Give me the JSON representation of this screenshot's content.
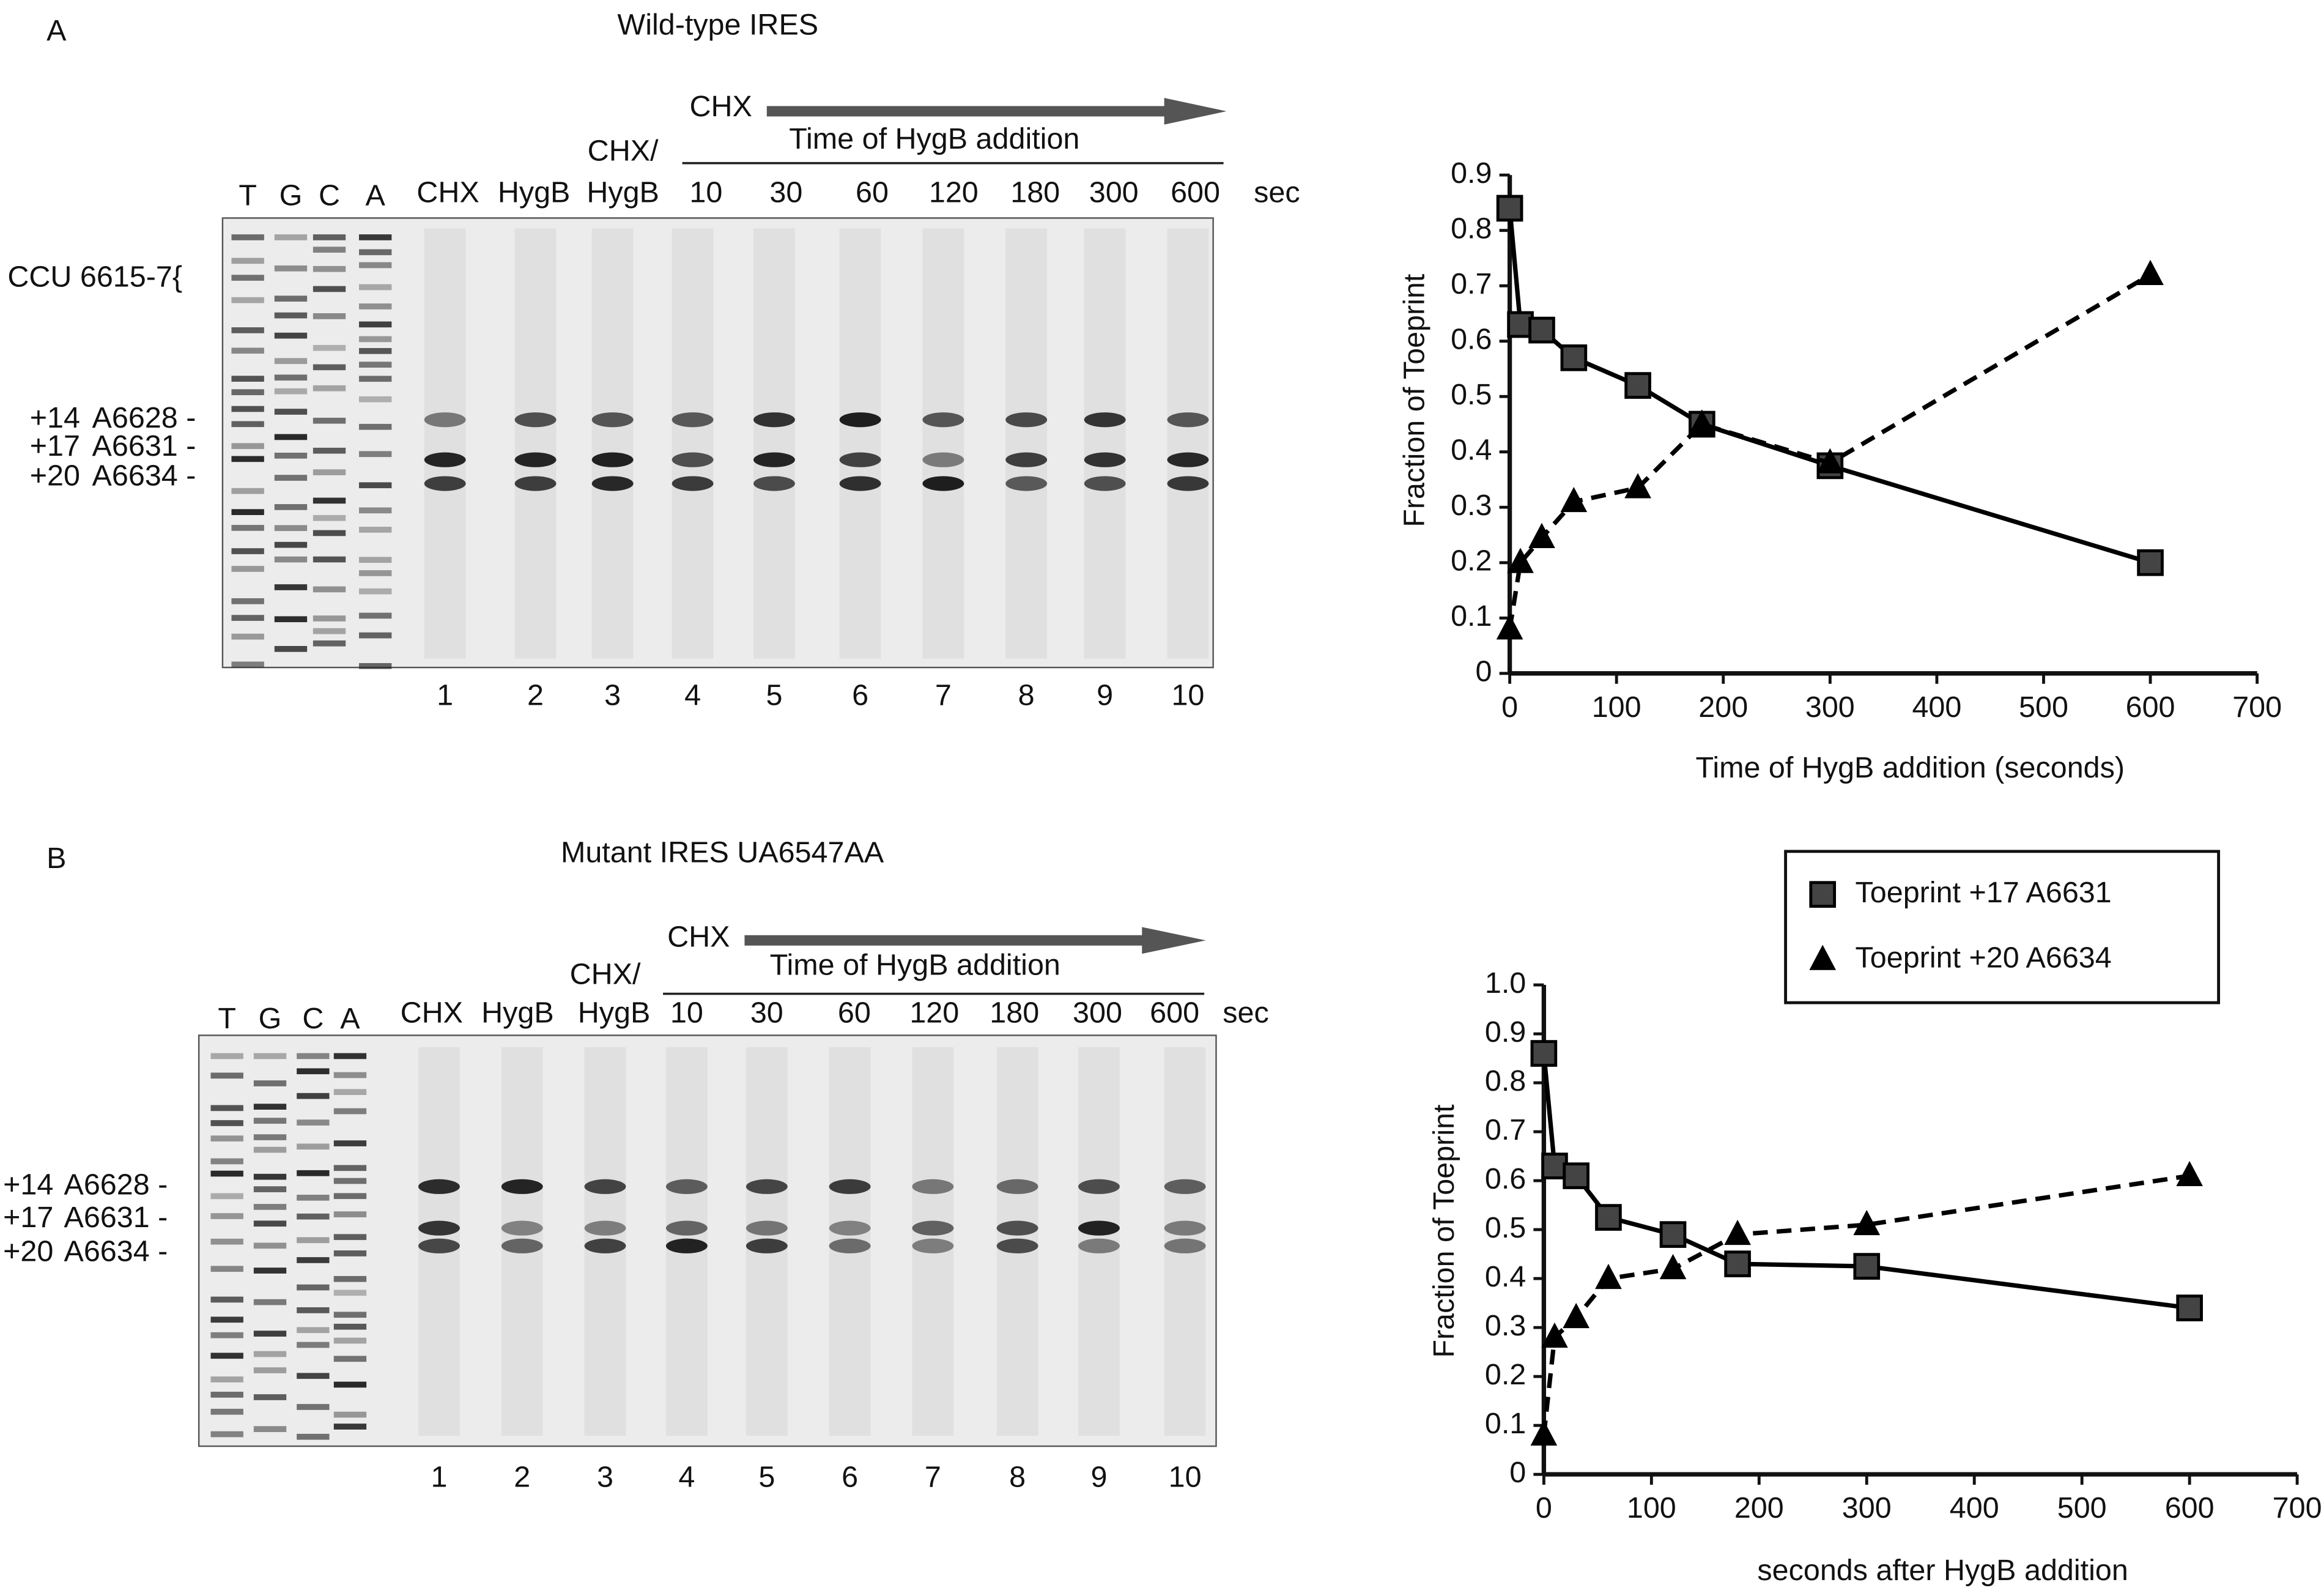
{
  "figure": {
    "panels": [
      {
        "label": "A",
        "title": "Wild-type IRES",
        "sequencing_lanes": [
          "T",
          "G",
          "C",
          "A"
        ],
        "conditions": [
          "CHX",
          "HygB",
          "CHX/",
          "HygB"
        ],
        "time_header": "CHX",
        "time_label": "Time of HygB addition",
        "times": [
          "10",
          "30",
          "60",
          "120",
          "180",
          "300",
          "600"
        ],
        "time_unit": "sec",
        "site_label": "CCU 6615-7{",
        "band_positions": [
          "+14",
          "+17",
          "+20"
        ],
        "band_labels": [
          "A6628 -",
          "A6631 -",
          "A6634 -"
        ],
        "lane_numbers": [
          "1",
          "2",
          "3",
          "4",
          "5",
          "6",
          "7",
          "8",
          "9",
          "10"
        ]
      },
      {
        "label": "B",
        "title": "Mutant IRES UA6547AA",
        "sequencing_lanes": [
          "T",
          "G",
          "C",
          "A"
        ],
        "conditions": [
          "CHX",
          "HygB",
          "CHX/",
          "HygB"
        ],
        "time_header": "CHX",
        "time_label": "Time of HygB addition",
        "times": [
          "10",
          "30",
          "60",
          "120",
          "180",
          "300",
          "600"
        ],
        "time_unit": "sec",
        "band_positions": [
          "+14",
          "+17",
          "+20"
        ],
        "band_labels": [
          "A6628 -",
          "A6631 -",
          "A6634 -"
        ],
        "lane_numbers": [
          "1",
          "2",
          "3",
          "4",
          "5",
          "6",
          "7",
          "8",
          "9",
          "10"
        ]
      }
    ]
  },
  "chart_data": [
    {
      "type": "line",
      "x_label": "Time of HygB addition (seconds)",
      "y_label": "Fraction of Toeprint",
      "x": [
        0,
        10,
        30,
        60,
        120,
        180,
        300,
        600
      ],
      "xlim": [
        0,
        700
      ],
      "xticks": [
        0,
        100,
        200,
        300,
        400,
        500,
        600,
        700
      ],
      "ylim": [
        0,
        0.9
      ],
      "yticks": [
        0,
        0.1,
        0.2,
        0.3,
        0.4,
        0.5,
        0.6,
        0.7,
        0.8,
        0.9
      ],
      "series": [
        {
          "color": "#000000",
          "marker": "square",
          "dashed": false,
          "values": [
            0.84,
            0.63,
            0.62,
            0.57,
            0.52,
            0.45,
            0.375,
            0.2
          ]
        },
        {
          "color": "#000000",
          "marker": "triangle",
          "dashed": true,
          "values": [
            0.08,
            0.2,
            0.245,
            0.31,
            0.335,
            0.45,
            0.38,
            0.72
          ]
        }
      ]
    },
    {
      "type": "line",
      "x_label": "seconds after HygB addition",
      "y_label": "Fraction of Toeprint",
      "x": [
        0,
        10,
        30,
        60,
        120,
        180,
        300,
        600
      ],
      "xlim": [
        0,
        700
      ],
      "xticks": [
        0,
        100,
        200,
        300,
        400,
        500,
        600,
        700
      ],
      "ylim": [
        0,
        1
      ],
      "yticks": [
        0,
        0.1,
        0.2,
        0.3,
        0.4,
        0.5,
        0.6,
        0.7,
        0.8,
        0.9,
        {
          "value": 1,
          "label": "1.0"
        }
      ],
      "legend": "top",
      "series": [
        {
          "name": "Toeprint +17 A6631",
          "color": "#000000",
          "marker": "square",
          "dashed": false,
          "values": [
            0.86,
            0.63,
            0.61,
            0.525,
            0.49,
            0.43,
            0.425,
            0.34
          ]
        },
        {
          "name": "Toeprint +20 A6634",
          "color": "#000000",
          "marker": "triangle",
          "dashed": true,
          "values": [
            0.08,
            0.28,
            0.32,
            0.4,
            0.42,
            0.49,
            0.51,
            0.61
          ]
        }
      ]
    }
  ]
}
